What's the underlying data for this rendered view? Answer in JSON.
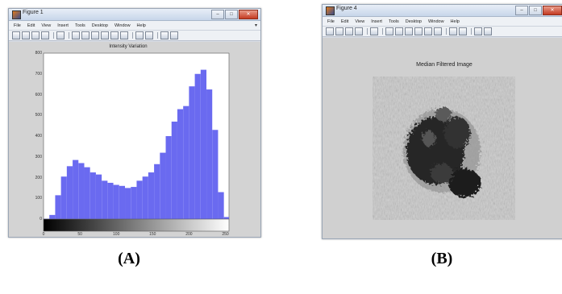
{
  "figure_a": {
    "window_title": "Figure 1",
    "menu": [
      "File",
      "Edit",
      "View",
      "Insert",
      "Tools",
      "Desktop",
      "Window",
      "Help"
    ],
    "toolbar_icons": [
      "new-icon",
      "open-icon",
      "save-icon",
      "print-icon",
      "pointer-icon",
      "zoom-in-icon",
      "zoom-out-icon",
      "pan-icon",
      "rotate-icon",
      "datacursor-icon",
      "brush-icon",
      "colorbar-icon",
      "legend-icon",
      "hide-icon",
      "show-icon"
    ],
    "axes_title": "Intensity Variation",
    "caption": "(A)"
  },
  "figure_b": {
    "window_title": "Figure 4",
    "menu": [
      "File",
      "Edit",
      "View",
      "Insert",
      "Tools",
      "Desktop",
      "Window",
      "Help"
    ],
    "toolbar_icons": [
      "new-icon",
      "open-icon",
      "save-icon",
      "print-icon",
      "pointer-icon",
      "zoom-in-icon",
      "zoom-out-icon",
      "pan-icon",
      "rotate-icon",
      "datacursor-icon",
      "brush-icon",
      "colorbar-icon",
      "legend-icon",
      "hide-icon",
      "show-icon"
    ],
    "axes_title": "Median Filtered Image",
    "caption": "(B)"
  },
  "colors": {
    "histogram_bar": "#6a6af0",
    "figure_bg": "#d3d3d3",
    "plot_bg": "#ffffff"
  },
  "chart_data": {
    "type": "bar",
    "title": "Intensity Variation",
    "xlabel": "",
    "ylabel": "",
    "xlim": [
      0,
      255
    ],
    "ylim": [
      0,
      800
    ],
    "x_ticks": [
      "0",
      "50",
      "100",
      "150",
      "200",
      "250"
    ],
    "y_ticks": [
      "0",
      "100",
      "200",
      "300",
      "400",
      "500",
      "600",
      "700",
      "800"
    ],
    "x": [
      0,
      8,
      16,
      24,
      32,
      40,
      48,
      56,
      64,
      72,
      80,
      88,
      96,
      104,
      112,
      120,
      128,
      136,
      144,
      152,
      160,
      168,
      176,
      184,
      192,
      200,
      208,
      216,
      224,
      232,
      240,
      248
    ],
    "values": [
      2,
      20,
      115,
      205,
      255,
      285,
      270,
      250,
      225,
      215,
      185,
      175,
      165,
      160,
      150,
      155,
      185,
      205,
      225,
      265,
      320,
      400,
      470,
      530,
      545,
      640,
      700,
      720,
      625,
      430,
      130,
      10
    ]
  }
}
